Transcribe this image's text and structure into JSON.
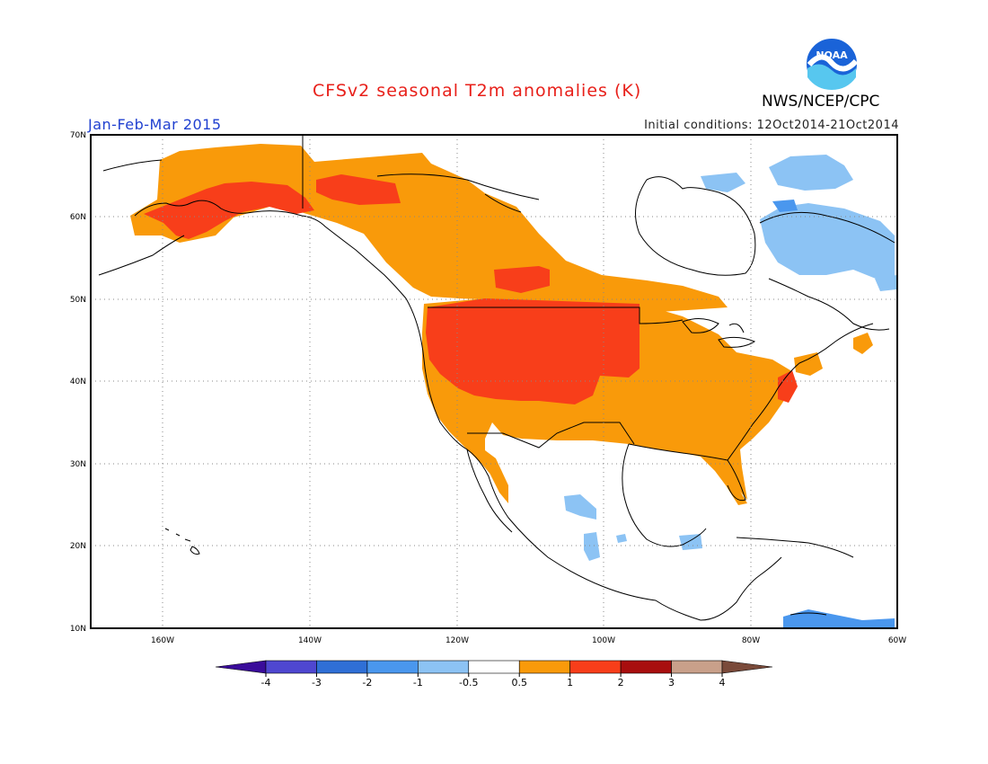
{
  "header": {
    "title": "CFSv2 seasonal T2m anomalies (K)",
    "season": "Jan-Feb-Mar 2015",
    "agency": "NWS/NCEP/CPC",
    "initial_conditions": "Initial conditions: 12Oct2014-21Oct2014",
    "logo_text": "NOAA"
  },
  "colors": {
    "title": "#e8201a",
    "season": "#2040d0",
    "land_outline": "#000000",
    "grid": "#888888"
  },
  "axes": {
    "lat_labels": [
      "70N",
      "60N",
      "50N",
      "40N",
      "30N",
      "20N",
      "10N"
    ],
    "lon_labels": [
      "160W",
      "140W",
      "120W",
      "100W",
      "80W",
      "60W"
    ]
  },
  "legend": {
    "bins": [
      {
        "color": "#3a0c9a"
      },
      {
        "color": "#4f47d0"
      },
      {
        "color": "#2f6fd6"
      },
      {
        "color": "#4a97ee"
      },
      {
        "color": "#8cc3f4"
      },
      {
        "color": "#ffffff"
      },
      {
        "color": "#f99a0a"
      },
      {
        "color": "#f83e1a"
      },
      {
        "color": "#a80e0e"
      },
      {
        "color": "#c9a08a"
      },
      {
        "color": "#7a4a3a"
      }
    ],
    "tick_labels": [
      "-4",
      "-3",
      "-2",
      "-1",
      "-0.5",
      "0.5",
      "1",
      "2",
      "3",
      "4"
    ]
  },
  "anomaly_regions": {
    "alaska_warm": "#f99a0a",
    "alaska_hot": "#f83e1a",
    "canada_warm": "#f99a0a",
    "west_us_hot": "#f83e1a",
    "east_us_warm": "#f99a0a",
    "cool_patches": "#8cc3f4",
    "cool_deep": "#4a97ee"
  }
}
